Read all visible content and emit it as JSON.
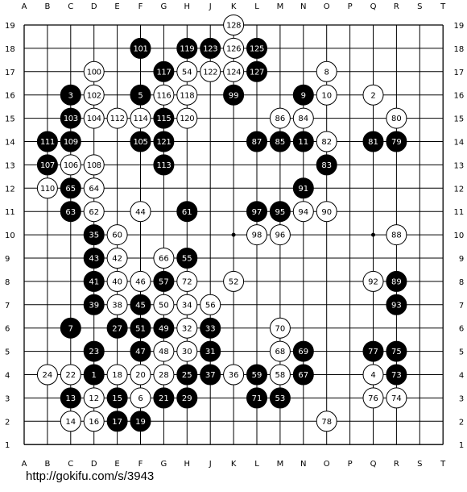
{
  "board": {
    "size": 19,
    "columns": [
      "A",
      "B",
      "C",
      "D",
      "E",
      "F",
      "G",
      "H",
      "J",
      "K",
      "L",
      "M",
      "N",
      "O",
      "P",
      "Q",
      "R",
      "S",
      "T"
    ],
    "rows": [
      "19",
      "18",
      "17",
      "16",
      "15",
      "14",
      "13",
      "12",
      "11",
      "10",
      "9",
      "8",
      "7",
      "6",
      "5",
      "4",
      "3",
      "2",
      "1"
    ],
    "star_points": [
      "K10",
      "Q10"
    ],
    "colors": {
      "line": "#000000",
      "black_stone": "#000000",
      "white_stone": "#ffffff"
    },
    "stones": [
      {
        "n": "1",
        "c": "b",
        "p": "D4"
      },
      {
        "n": "2",
        "c": "w",
        "p": "Q16"
      },
      {
        "n": "3",
        "c": "b",
        "p": "C16"
      },
      {
        "n": "4",
        "c": "w",
        "p": "Q4"
      },
      {
        "n": "5",
        "c": "b",
        "p": "F16"
      },
      {
        "n": "6",
        "c": "w",
        "p": "F3"
      },
      {
        "n": "7",
        "c": "b",
        "p": "C6"
      },
      {
        "n": "8",
        "c": "w",
        "p": "O17"
      },
      {
        "n": "9",
        "c": "b",
        "p": "N16"
      },
      {
        "n": "10",
        "c": "w",
        "p": "O16"
      },
      {
        "n": "11",
        "c": "b",
        "p": "N14"
      },
      {
        "n": "12",
        "c": "w",
        "p": "D3"
      },
      {
        "n": "13",
        "c": "b",
        "p": "C3"
      },
      {
        "n": "14",
        "c": "w",
        "p": "C2"
      },
      {
        "n": "15",
        "c": "b",
        "p": "E3"
      },
      {
        "n": "16",
        "c": "w",
        "p": "D2"
      },
      {
        "n": "17",
        "c": "b",
        "p": "E2"
      },
      {
        "n": "18",
        "c": "w",
        "p": "E4"
      },
      {
        "n": "19",
        "c": "b",
        "p": "F2"
      },
      {
        "n": "20",
        "c": "w",
        "p": "F4"
      },
      {
        "n": "21",
        "c": "b",
        "p": "G3"
      },
      {
        "n": "22",
        "c": "w",
        "p": "C4"
      },
      {
        "n": "23",
        "c": "b",
        "p": "D5"
      },
      {
        "n": "24",
        "c": "w",
        "p": "B4"
      },
      {
        "n": "25",
        "c": "b",
        "p": "H4"
      },
      {
        "n": "27",
        "c": "b",
        "p": "E6"
      },
      {
        "n": "28",
        "c": "w",
        "p": "G4"
      },
      {
        "n": "29",
        "c": "b",
        "p": "H3"
      },
      {
        "n": "30",
        "c": "w",
        "p": "H5"
      },
      {
        "n": "31",
        "c": "b",
        "p": "J5"
      },
      {
        "n": "32",
        "c": "w",
        "p": "H6"
      },
      {
        "n": "33",
        "c": "b",
        "p": "J6"
      },
      {
        "n": "34",
        "c": "w",
        "p": "H7"
      },
      {
        "n": "35",
        "c": "b",
        "p": "D10"
      },
      {
        "n": "36",
        "c": "w",
        "p": "K4"
      },
      {
        "n": "37",
        "c": "b",
        "p": "J4"
      },
      {
        "n": "38",
        "c": "w",
        "p": "E7"
      },
      {
        "n": "39",
        "c": "b",
        "p": "D7"
      },
      {
        "n": "40",
        "c": "w",
        "p": "E8"
      },
      {
        "n": "41",
        "c": "b",
        "p": "D8"
      },
      {
        "n": "42",
        "c": "w",
        "p": "E9"
      },
      {
        "n": "43",
        "c": "b",
        "p": "D9"
      },
      {
        "n": "44",
        "c": "w",
        "p": "F11"
      },
      {
        "n": "45",
        "c": "b",
        "p": "F7"
      },
      {
        "n": "46",
        "c": "w",
        "p": "F8"
      },
      {
        "n": "47",
        "c": "b",
        "p": "F5"
      },
      {
        "n": "48",
        "c": "w",
        "p": "G5"
      },
      {
        "n": "49",
        "c": "b",
        "p": "G6"
      },
      {
        "n": "50",
        "c": "w",
        "p": "G7"
      },
      {
        "n": "51",
        "c": "b",
        "p": "F6"
      },
      {
        "n": "52",
        "c": "w",
        "p": "K8"
      },
      {
        "n": "53",
        "c": "b",
        "p": "M3"
      },
      {
        "n": "54",
        "c": "w",
        "p": "H17"
      },
      {
        "n": "55",
        "c": "b",
        "p": "H9"
      },
      {
        "n": "56",
        "c": "w",
        "p": "J7"
      },
      {
        "n": "57",
        "c": "b",
        "p": "G8"
      },
      {
        "n": "58",
        "c": "w",
        "p": "M4"
      },
      {
        "n": "59",
        "c": "b",
        "p": "L4"
      },
      {
        "n": "60",
        "c": "w",
        "p": "E10"
      },
      {
        "n": "61",
        "c": "b",
        "p": "H11"
      },
      {
        "n": "62",
        "c": "w",
        "p": "D11"
      },
      {
        "n": "63",
        "c": "b",
        "p": "C11"
      },
      {
        "n": "64",
        "c": "w",
        "p": "D12"
      },
      {
        "n": "65",
        "c": "b",
        "p": "C12"
      },
      {
        "n": "66",
        "c": "w",
        "p": "G9"
      },
      {
        "n": "67",
        "c": "b",
        "p": "N4"
      },
      {
        "n": "68",
        "c": "w",
        "p": "M5"
      },
      {
        "n": "69",
        "c": "b",
        "p": "N5"
      },
      {
        "n": "70",
        "c": "w",
        "p": "M6"
      },
      {
        "n": "71",
        "c": "b",
        "p": "L3"
      },
      {
        "n": "72",
        "c": "w",
        "p": "H8"
      },
      {
        "n": "73",
        "c": "b",
        "p": "R4"
      },
      {
        "n": "74",
        "c": "w",
        "p": "R3"
      },
      {
        "n": "75",
        "c": "b",
        "p": "R5"
      },
      {
        "n": "76",
        "c": "w",
        "p": "Q3"
      },
      {
        "n": "77",
        "c": "b",
        "p": "Q5"
      },
      {
        "n": "78",
        "c": "w",
        "p": "O2"
      },
      {
        "n": "79",
        "c": "b",
        "p": "R14"
      },
      {
        "n": "80",
        "c": "w",
        "p": "R15"
      },
      {
        "n": "81",
        "c": "b",
        "p": "Q14"
      },
      {
        "n": "82",
        "c": "w",
        "p": "O14"
      },
      {
        "n": "83",
        "c": "b",
        "p": "O13"
      },
      {
        "n": "84",
        "c": "w",
        "p": "N15"
      },
      {
        "n": "85",
        "c": "b",
        "p": "M14"
      },
      {
        "n": "86",
        "c": "w",
        "p": "M15"
      },
      {
        "n": "87",
        "c": "b",
        "p": "L14"
      },
      {
        "n": "88",
        "c": "w",
        "p": "R10"
      },
      {
        "n": "89",
        "c": "b",
        "p": "R8"
      },
      {
        "n": "90",
        "c": "w",
        "p": "O11"
      },
      {
        "n": "91",
        "c": "b",
        "p": "N12"
      },
      {
        "n": "92",
        "c": "w",
        "p": "Q8"
      },
      {
        "n": "93",
        "c": "b",
        "p": "R7"
      },
      {
        "n": "94",
        "c": "w",
        "p": "N11"
      },
      {
        "n": "95",
        "c": "b",
        "p": "M11"
      },
      {
        "n": "96",
        "c": "w",
        "p": "M10"
      },
      {
        "n": "97",
        "c": "b",
        "p": "L11"
      },
      {
        "n": "98",
        "c": "w",
        "p": "L10"
      },
      {
        "n": "99",
        "c": "b",
        "p": "K16"
      },
      {
        "n": "100",
        "c": "w",
        "p": "D17"
      },
      {
        "n": "101",
        "c": "b",
        "p": "F18"
      },
      {
        "n": "102",
        "c": "w",
        "p": "D16"
      },
      {
        "n": "103",
        "c": "b",
        "p": "C15"
      },
      {
        "n": "104",
        "c": "w",
        "p": "D15"
      },
      {
        "n": "105",
        "c": "b",
        "p": "F14"
      },
      {
        "n": "106",
        "c": "w",
        "p": "C13"
      },
      {
        "n": "107",
        "c": "b",
        "p": "B13"
      },
      {
        "n": "108",
        "c": "w",
        "p": "D13"
      },
      {
        "n": "109",
        "c": "b",
        "p": "C14"
      },
      {
        "n": "110",
        "c": "w",
        "p": "B12"
      },
      {
        "n": "111",
        "c": "b",
        "p": "B14"
      },
      {
        "n": "112",
        "c": "w",
        "p": "E15"
      },
      {
        "n": "113",
        "c": "b",
        "p": "G13"
      },
      {
        "n": "114",
        "c": "w",
        "p": "F15"
      },
      {
        "n": "115",
        "c": "b",
        "p": "G15"
      },
      {
        "n": "116",
        "c": "w",
        "p": "G16"
      },
      {
        "n": "117",
        "c": "b",
        "p": "G17"
      },
      {
        "n": "118",
        "c": "w",
        "p": "H16"
      },
      {
        "n": "119",
        "c": "b",
        "p": "H18"
      },
      {
        "n": "120",
        "c": "w",
        "p": "H15"
      },
      {
        "n": "121",
        "c": "b",
        "p": "G14"
      },
      {
        "n": "122",
        "c": "w",
        "p": "J17"
      },
      {
        "n": "123",
        "c": "b",
        "p": "J18"
      },
      {
        "n": "124",
        "c": "w",
        "p": "K17"
      },
      {
        "n": "125",
        "c": "b",
        "p": "L18"
      },
      {
        "n": "126",
        "c": "w",
        "p": "K18"
      },
      {
        "n": "127",
        "c": "b",
        "p": "L17"
      },
      {
        "n": "128",
        "c": "w",
        "p": "K19"
      }
    ]
  },
  "footer": {
    "source_url": "http://gokifu.com/s/3943"
  }
}
